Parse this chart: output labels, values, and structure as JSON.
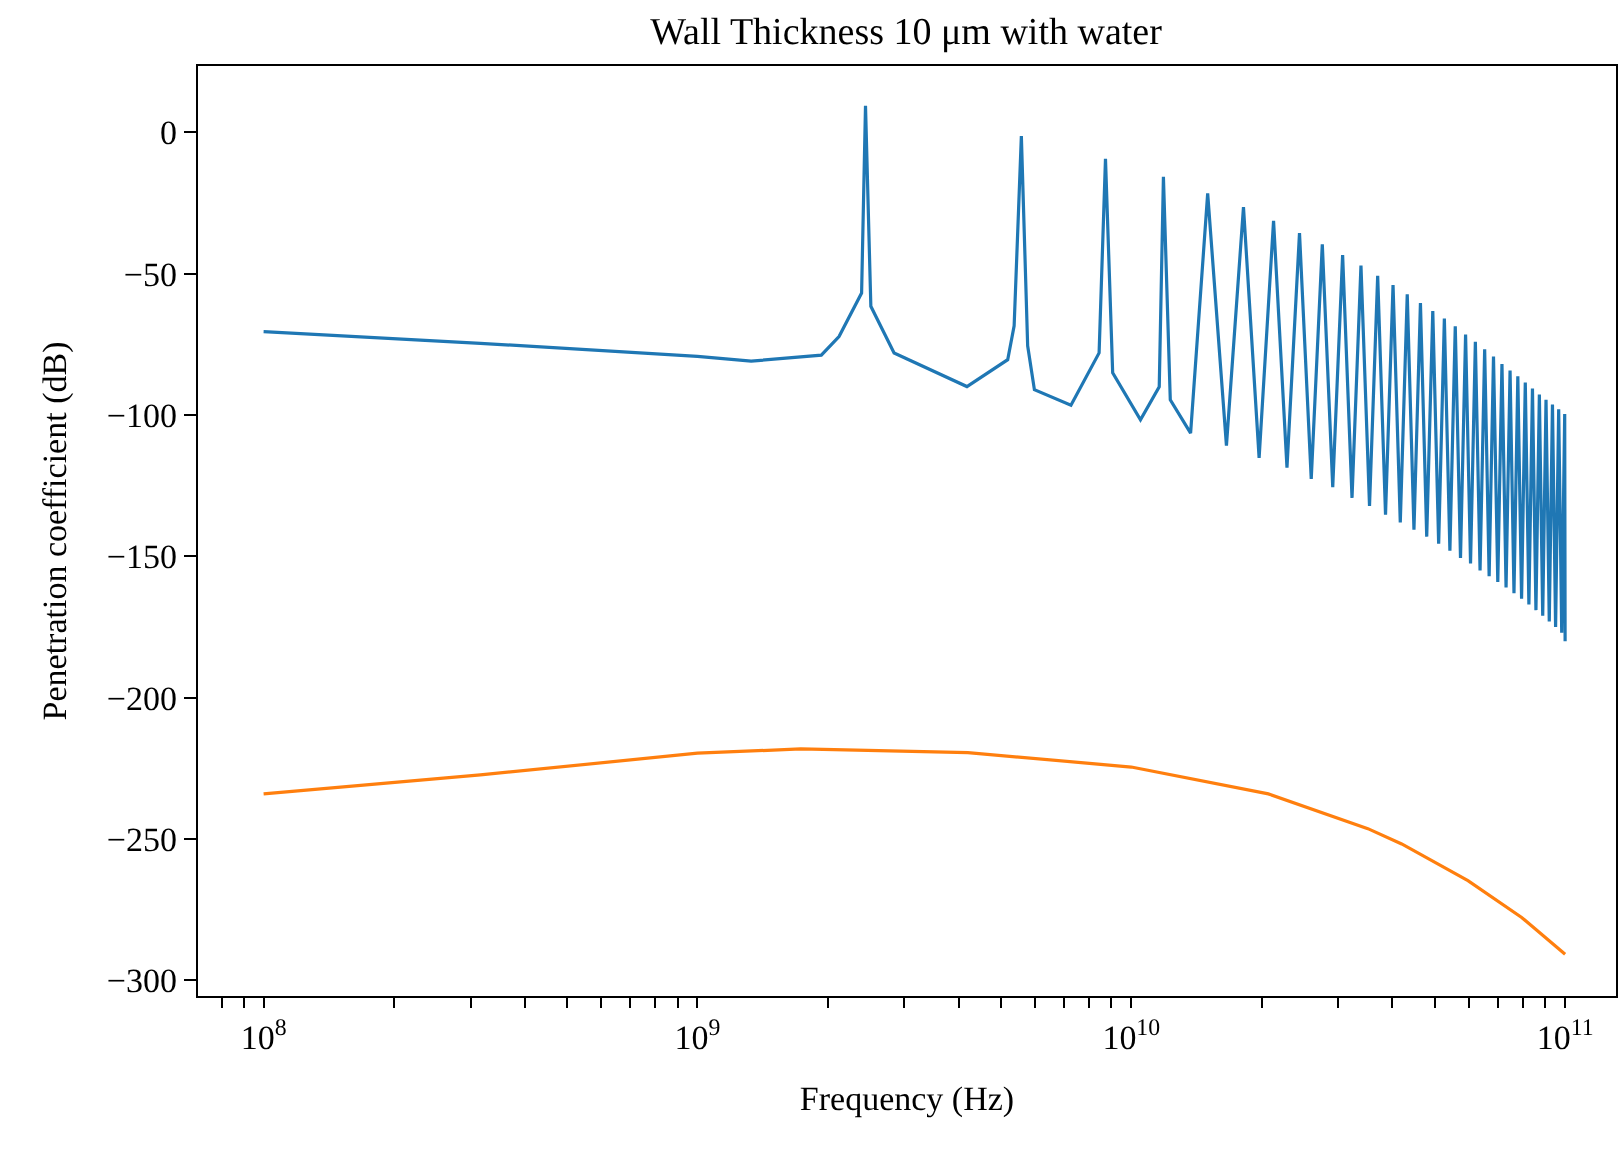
{
  "chart_data": {
    "type": "line",
    "title": "Wall Thickness 10 μm with water",
    "xlabel": "Frequency (Hz)",
    "ylabel": "Penetration coefficient (dB)",
    "log": "x",
    "marker": "none",
    "line_style": "solid",
    "xlim": [
      70600000.0,
      131000000000.0
    ],
    "ylim": [
      -305.5,
      23.5
    ],
    "xticks": [
      {
        "value": 80000000.0,
        "label": null
      },
      {
        "value": 90000000.0,
        "label": null
      },
      {
        "value": 100000000.0,
        "label": "10$^{8}$"
      },
      {
        "value": 200000000.0,
        "label": null
      },
      {
        "value": 300000000.0,
        "label": null
      },
      {
        "value": 400000000.0,
        "label": null
      },
      {
        "value": 500000000.0,
        "label": null
      },
      {
        "value": 600000000.0,
        "label": null
      },
      {
        "value": 700000000.0,
        "label": null
      },
      {
        "value": 800000000.0,
        "label": null
      },
      {
        "value": 900000000.0,
        "label": null
      },
      {
        "value": 1000000000.0,
        "label": "10$^{9}$"
      },
      {
        "value": 2000000000.0,
        "label": null
      },
      {
        "value": 3000000000.0,
        "label": null
      },
      {
        "value": 4000000000.0,
        "label": null
      },
      {
        "value": 5000000000.0,
        "label": null
      },
      {
        "value": 6000000000.0,
        "label": null
      },
      {
        "value": 7000000000.0,
        "label": null
      },
      {
        "value": 8000000000.0,
        "label": null
      },
      {
        "value": 9000000000.0,
        "label": null
      },
      {
        "value": 10000000000.0,
        "label": "10$^{10}$"
      },
      {
        "value": 20000000000.0,
        "label": null
      },
      {
        "value": 30000000000.0,
        "label": null
      },
      {
        "value": 40000000000.0,
        "label": null
      },
      {
        "value": 50000000000.0,
        "label": null
      },
      {
        "value": 60000000000.0,
        "label": null
      },
      {
        "value": 70000000000.0,
        "label": null
      },
      {
        "value": 80000000000.0,
        "label": null
      },
      {
        "value": 90000000000.0,
        "label": null
      },
      {
        "value": 100000000000.0,
        "label": "10$^{11}$"
      }
    ],
    "yticks": [
      {
        "value": 0,
        "label": "0"
      },
      {
        "value": -50,
        "label": "−50"
      },
      {
        "value": -100,
        "label": "−100"
      },
      {
        "value": -150,
        "label": "−150"
      },
      {
        "value": -200,
        "label": "−200"
      },
      {
        "value": -250,
        "label": "−250"
      },
      {
        "value": -300,
        "label": "−300"
      }
    ],
    "series": [
      {
        "color": "#1f77b4",
        "x": [
          100000000.0,
          316000000.0,
          1000000000.0,
          1330000000.0,
          1930000000.0,
          2120000000.0,
          2390000000.0,
          2440000000.0,
          2510000000.0,
          2840000000.0,
          4180000000.0,
          5190000000.0,
          5370000000.0,
          5580000000.0,
          5770000000.0,
          5980000000.0,
          7260000000.0,
          8430000000.0,
          8720000000.0,
          9060000000.0,
          10500000000.0,
          11600000000.0,
          11860000000.0,
          12300000000.0,
          13700000000.0,
          15000000000.0,
          16570000000.0,
          18140000000.0,
          19710000000.0,
          21280000000.0,
          22850000000.0,
          24420000000.0,
          25990000000.0,
          27560000000.0,
          29130000000.0,
          30700000000.0,
          32270000000.0,
          33840000000.0,
          35410000000.0,
          36980000000.0,
          38550000000.0,
          40120000000.0,
          41690000000.0,
          43260000000.0,
          44830000000.0,
          46400000000.0,
          47970000000.0,
          49540000000.0,
          51110000000.0,
          52680000000.0,
          54250000000.0,
          55820000000.0,
          57390000000.0,
          58960000000.0,
          60530000000.0,
          62100000000.0,
          63670000000.0,
          65240000000.0,
          66810000000.0,
          68380000000.0,
          69950000000.0,
          71520000000.0,
          73090000000.0,
          74660000000.0,
          76230000000.0,
          77800000000.0,
          79370000000.0,
          80940000000.0,
          82510000000.0,
          84080000000.0,
          85650000000.0,
          87220000000.0,
          88790000000.0,
          90360000000.0,
          91930000000.0,
          93500000000.0,
          95070000000.0,
          96640000000.0,
          98210000000.0,
          99780000000.0,
          100000000000.0
        ],
        "values": [
          -70.5,
          -74.6,
          -79.2,
          -80.9,
          -78.8,
          -72.2,
          -56.8,
          9.4,
          -61.5,
          -78,
          -89.9,
          -80.4,
          -68.4,
          -1.3,
          -75.5,
          -91,
          -96.5,
          -78,
          -9.3,
          -85,
          -101.7,
          -90,
          -15.7,
          -94.6,
          -106.4,
          -21.6,
          -110.8,
          -26.4,
          -115.1,
          -31.3,
          -118.6,
          -35.6,
          -122.6,
          -39.6,
          -125.5,
          -43.4,
          -129.3,
          -47.1,
          -132.1,
          -50.7,
          -135.2,
          -54.0,
          -138,
          -57.3,
          -140.5,
          -60.4,
          -143,
          -63.2,
          -145.5,
          -65.8,
          -148,
          -68.6,
          -150.5,
          -71.5,
          -152.5,
          -74.1,
          -155,
          -76.7,
          -157,
          -79.3,
          -159,
          -81.9,
          -161,
          -84.2,
          -163,
          -86.3,
          -165,
          -88.5,
          -167,
          -90.6,
          -169,
          -92.7,
          -171,
          -94.6,
          -173,
          -96.3,
          -175,
          -97.9,
          -177,
          -99.6,
          -180
        ]
      },
      {
        "color": "#ff7f0e",
        "x": [
          100000000.0,
          316000000.0,
          1000000000.0,
          1730000000.0,
          4200000000.0,
          10000000000.0,
          20700000000.0,
          35100000000.0,
          42000000000.0,
          59700000000.0,
          79400000000.0,
          100000000000.0
        ],
        "values": [
          -234.0,
          -227.3,
          -219.6,
          -218.1,
          -219.4,
          -224.5,
          -234.0,
          -246.3,
          -251.7,
          -264.7,
          -277.7,
          -290.7
        ]
      }
    ]
  }
}
